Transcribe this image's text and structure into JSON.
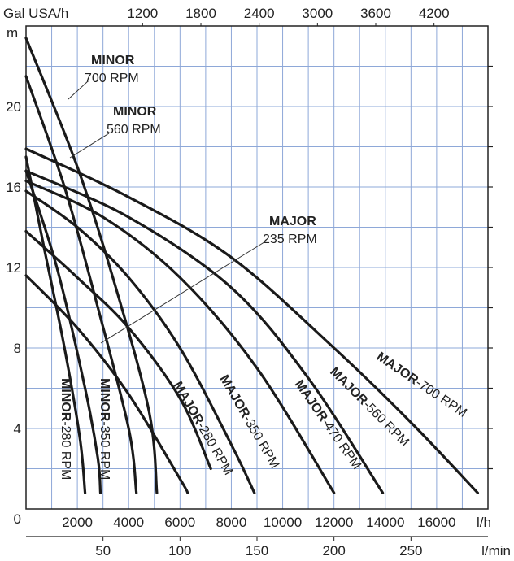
{
  "chart_data": {
    "type": "line",
    "title": "",
    "ylabel": "m",
    "xlabel": "l/h",
    "y_ticks": [
      "0",
      "4",
      "8",
      "12",
      "16",
      "20"
    ],
    "ylim": [
      0,
      24
    ],
    "x_ticks_lh": [
      "2000",
      "4000",
      "6000",
      "8000",
      "10000",
      "12000",
      "14000",
      "16000"
    ],
    "xlim_lh": [
      0,
      18000
    ],
    "x_unit_lh": "l/h",
    "top_axis_label": "Gal USA/h",
    "top_ticks": [
      "1200",
      "1800",
      "2400",
      "3000",
      "3600",
      "4200"
    ],
    "top_tick_values_lh": [
      4542,
      6814,
      9085,
      11356,
      13627,
      15898
    ],
    "bottom_axis_label": "l/min",
    "bottom_ticks": [
      "50",
      "100",
      "150",
      "200",
      "250"
    ],
    "bottom_tick_values_lh": [
      3000,
      6000,
      9000,
      12000,
      15000
    ],
    "grid": true,
    "series": [
      {
        "name": "MINOR-280 RPM",
        "label_main": "MINOR",
        "label_rpm": "-280 RPM",
        "points": [
          [
            0,
            17.5
          ],
          [
            700,
            13
          ],
          [
            1500,
            8
          ],
          [
            2100,
            3.5
          ],
          [
            2300,
            0.8
          ]
        ]
      },
      {
        "name": "MINOR-350 RPM",
        "label_main": "MINOR",
        "label_rpm": "-350 RPM",
        "points": [
          [
            0,
            16.8
          ],
          [
            1200,
            12
          ],
          [
            2300,
            6
          ],
          [
            2800,
            2.5
          ],
          [
            2900,
            0.8
          ]
        ]
      },
      {
        "name": "MINOR 560 RPM",
        "label_main": "MINOR",
        "label_rpm": "560 RPM",
        "points": [
          [
            0,
            21.5
          ],
          [
            1500,
            16
          ],
          [
            2800,
            10
          ],
          [
            4000,
            4
          ],
          [
            4300,
            0.8
          ]
        ]
      },
      {
        "name": "MINOR 700 RPM",
        "label_main": "MINOR",
        "label_rpm": "700 RPM",
        "points": [
          [
            0,
            23.4
          ],
          [
            2000,
            17
          ],
          [
            3500,
            11
          ],
          [
            4800,
            4.8
          ],
          [
            5100,
            0.8
          ]
        ]
      },
      {
        "name": "MAJOR-280 RPM",
        "label_main": "MAJOR",
        "label_rpm": "-280 RPM",
        "points": [
          [
            0,
            11.6
          ],
          [
            2000,
            9
          ],
          [
            4000,
            5.7
          ],
          [
            6000,
            1.5
          ],
          [
            6300,
            0.8
          ]
        ]
      },
      {
        "name": "MAJOR 235 RPM",
        "label_main": "MAJOR",
        "label_rpm": "235 RPM",
        "points": [
          [
            0,
            13.8
          ],
          [
            2000,
            11.5
          ],
          [
            4000,
            9
          ],
          [
            6000,
            5.5
          ],
          [
            7200,
            2
          ]
        ]
      },
      {
        "name": "MAJOR-350 RPM",
        "label_main": "MAJOR",
        "label_rpm": "-350 RPM",
        "points": [
          [
            0,
            15.8
          ],
          [
            2000,
            14
          ],
          [
            4000,
            11.5
          ],
          [
            6000,
            8
          ],
          [
            8000,
            3.2
          ],
          [
            8900,
            0.8
          ]
        ]
      },
      {
        "name": "MAJOR-470 RPM",
        "label_main": "MAJOR",
        "label_rpm": "-470 RPM",
        "points": [
          [
            0,
            16.3
          ],
          [
            3000,
            14.5
          ],
          [
            6000,
            11.5
          ],
          [
            9000,
            7
          ],
          [
            12000,
            0.8
          ]
        ]
      },
      {
        "name": "MAJOR-560 RPM",
        "label_main": "MAJOR",
        "label_rpm": "-560 RPM",
        "points": [
          [
            0,
            16.8
          ],
          [
            4000,
            14.5
          ],
          [
            8000,
            11
          ],
          [
            11000,
            6.5
          ],
          [
            13900,
            0.8
          ]
        ]
      },
      {
        "name": "MAJOR-700 RPM",
        "label_main": "MAJOR",
        "label_rpm": "-700 RPM",
        "points": [
          [
            0,
            17.9
          ],
          [
            4000,
            15.5
          ],
          [
            8000,
            12.5
          ],
          [
            12000,
            8
          ],
          [
            15000,
            4.3
          ],
          [
            17600,
            0.8
          ]
        ]
      }
    ]
  }
}
